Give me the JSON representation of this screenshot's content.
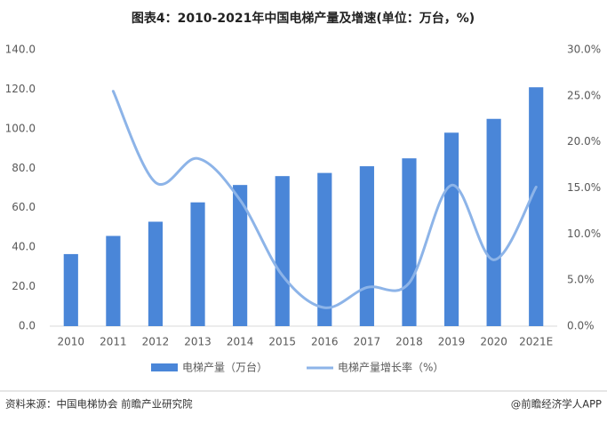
{
  "chart_data": {
    "type": "bar_line",
    "title": "图表4：2010-2021年中国电梯产量及增速(单位：万台，%)",
    "categories": [
      "2010",
      "2011",
      "2012",
      "2013",
      "2014",
      "2015",
      "2016",
      "2017",
      "2018",
      "2019",
      "2020",
      "2021E"
    ],
    "series": [
      {
        "name": "电梯产量（万台）",
        "type": "bar",
        "color": "#4a86d8",
        "values": [
          36.5,
          45.7,
          52.9,
          62.7,
          71.5,
          76,
          77.6,
          81,
          85,
          98,
          105,
          121
        ]
      },
      {
        "name": "电梯产量增长率（%）",
        "type": "line",
        "axis": "y2",
        "color": "#8db4e8",
        "values": [
          null,
          25.5,
          15.6,
          18.2,
          13.7,
          5.5,
          2.0,
          4.2,
          4.7,
          15.3,
          7.2,
          15.1
        ]
      }
    ],
    "ylim": [
      0,
      140
    ],
    "yticks": [
      {
        "value": 0,
        "label": "0.0"
      },
      {
        "value": 20,
        "label": "20.0"
      },
      {
        "value": 40,
        "label": "40.0"
      },
      {
        "value": 60,
        "label": "60.0"
      },
      {
        "value": 80,
        "label": "80.0"
      },
      {
        "value": 100,
        "label": "100.0"
      },
      {
        "value": 120,
        "label": "120.0"
      },
      {
        "value": 140,
        "label": "140.0"
      }
    ],
    "y2lim": [
      0,
      30
    ],
    "y2ticks": [
      {
        "value": 0,
        "label": "0.0%"
      },
      {
        "value": 5,
        "label": "5.0%"
      },
      {
        "value": 10,
        "label": "10.0%"
      },
      {
        "value": 15,
        "label": "15.0%"
      },
      {
        "value": 20,
        "label": "20.0%"
      },
      {
        "value": 25,
        "label": "25.0%"
      },
      {
        "value": 30,
        "label": "30.0%"
      }
    ],
    "legend": "bottom",
    "source": "资料来源：中国电梯协会 前瞻产业研究院",
    "credit": "@前瞻经济学人APP"
  }
}
